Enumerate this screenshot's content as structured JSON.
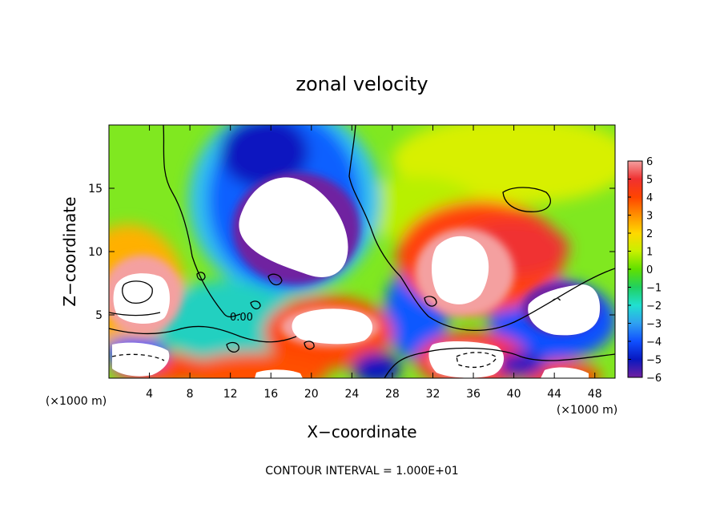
{
  "chart_data": {
    "type": "heatmap",
    "title": "zonal velocity",
    "xlabel": "X−coordinate",
    "ylabel": "Z−coordinate",
    "x_unit_left": "(×1000 m)",
    "x_unit_right": "(×1000 m)",
    "xlim": [
      0,
      50
    ],
    "ylim": [
      0,
      20
    ],
    "x_ticks": [
      4,
      8,
      12,
      16,
      20,
      24,
      28,
      32,
      36,
      40,
      44,
      48
    ],
    "y_ticks": [
      5,
      10,
      15
    ],
    "colorbar": {
      "levels": [
        6,
        5,
        4,
        3,
        2,
        1,
        0,
        -1,
        -2,
        -3,
        -4,
        -5,
        -6
      ],
      "labels": [
        "6",
        "5",
        "4",
        "3",
        "2",
        "1",
        "0",
        "−1",
        "−2",
        "−3",
        "−4",
        "−5",
        "−6"
      ],
      "colors": [
        "#f4a0a0",
        "#f03030",
        "#ff4400",
        "#ff9000",
        "#ffd800",
        "#c8f000",
        "#60e000",
        "#20d060",
        "#20e0d0",
        "#30a0f0",
        "#1050ff",
        "#0818c0",
        "#7020a0"
      ]
    },
    "contour_label": "0.00",
    "footer": "CONTOUR INTERVAL = 1.000E+01",
    "features": [
      {
        "kind": "out-of-range-low",
        "region": "upper-middle",
        "cx": 18,
        "cz": 12.5,
        "rx": 5,
        "rz": 4
      },
      {
        "kind": "out-of-range-high",
        "region": "right",
        "cx": 35,
        "cz": 8.5,
        "rx": 4,
        "rz": 3.5
      },
      {
        "kind": "out-of-range-high",
        "region": "left",
        "cx": 2,
        "cz": 6.5,
        "rx": 2.2,
        "rz": 2.2
      },
      {
        "kind": "out-of-range-high",
        "region": "bottom",
        "cx": 21,
        "cz": 4,
        "rx": 3,
        "rz": 1.5
      },
      {
        "kind": "out-of-range-low",
        "region": "right-low",
        "cx": 46,
        "cz": 5.5,
        "rx": 3.2,
        "rz": 2.5
      }
    ]
  }
}
